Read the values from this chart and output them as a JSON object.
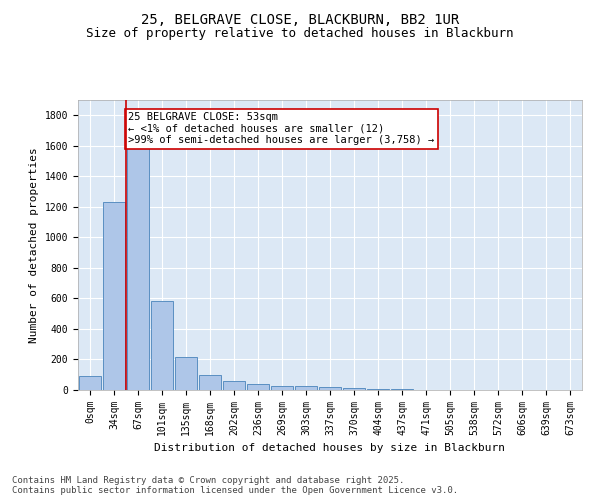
{
  "title_line1": "25, BELGRAVE CLOSE, BLACKBURN, BB2 1UR",
  "title_line2": "Size of property relative to detached houses in Blackburn",
  "xlabel": "Distribution of detached houses by size in Blackburn",
  "ylabel": "Number of detached properties",
  "bar_labels": [
    "0sqm",
    "34sqm",
    "67sqm",
    "101sqm",
    "135sqm",
    "168sqm",
    "202sqm",
    "236sqm",
    "269sqm",
    "303sqm",
    "337sqm",
    "370sqm",
    "404sqm",
    "437sqm",
    "471sqm",
    "505sqm",
    "538sqm",
    "572sqm",
    "606sqm",
    "639sqm",
    "673sqm"
  ],
  "bar_values": [
    90,
    1230,
    1600,
    580,
    215,
    100,
    60,
    38,
    28,
    28,
    20,
    15,
    8,
    5,
    3,
    2,
    1,
    1,
    0,
    0,
    1
  ],
  "bar_color": "#aec6e8",
  "bar_edge_color": "#5a8fc2",
  "vline_x": 1.5,
  "vline_color": "#cc0000",
  "annotation_text": "25 BELGRAVE CLOSE: 53sqm\n← <1% of detached houses are smaller (12)\n>99% of semi-detached houses are larger (3,758) →",
  "annotation_box_color": "#ffffff",
  "annotation_box_edge": "#cc0000",
  "ylim": [
    0,
    1900
  ],
  "yticks": [
    0,
    200,
    400,
    600,
    800,
    1000,
    1200,
    1400,
    1600,
    1800
  ],
  "background_color": "#dce8f5",
  "footer_line1": "Contains HM Land Registry data © Crown copyright and database right 2025.",
  "footer_line2": "Contains public sector information licensed under the Open Government Licence v3.0.",
  "title_fontsize": 10,
  "subtitle_fontsize": 9,
  "axis_label_fontsize": 8,
  "tick_fontsize": 7,
  "annotation_fontsize": 7.5,
  "footer_fontsize": 6.5
}
